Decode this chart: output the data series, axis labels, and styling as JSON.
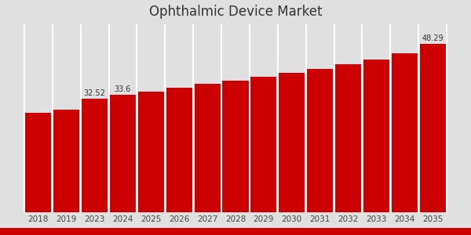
{
  "title": "Ophthalmic Device Market",
  "categories": [
    "2018",
    "2019",
    "2023",
    "2024",
    "2025",
    "2026",
    "2027",
    "2028",
    "2029",
    "2030",
    "2031",
    "2032",
    "2033",
    "2034",
    "2035"
  ],
  "values": [
    28.5,
    29.5,
    32.52,
    33.6,
    34.5,
    35.6,
    36.8,
    37.7,
    38.8,
    39.9,
    41.2,
    42.5,
    43.8,
    45.5,
    48.29
  ],
  "bar_color": "#cc0000",
  "background_color": "#e0e0e0",
  "labeled_bars": {
    "2023": "32.52",
    "2024": "33.6",
    "2035": "48.29"
  },
  "label_fontsize": 7,
  "title_fontsize": 12,
  "ylabel_fontsize": 8,
  "tick_fontsize": 7.5,
  "ylim": [
    0,
    54
  ],
  "bar_width": 0.92,
  "bottom_bar_color": "#cc0000",
  "bottom_bar_height": 0.03,
  "separator_color": "#ffffff",
  "separator_lw": 1.5
}
